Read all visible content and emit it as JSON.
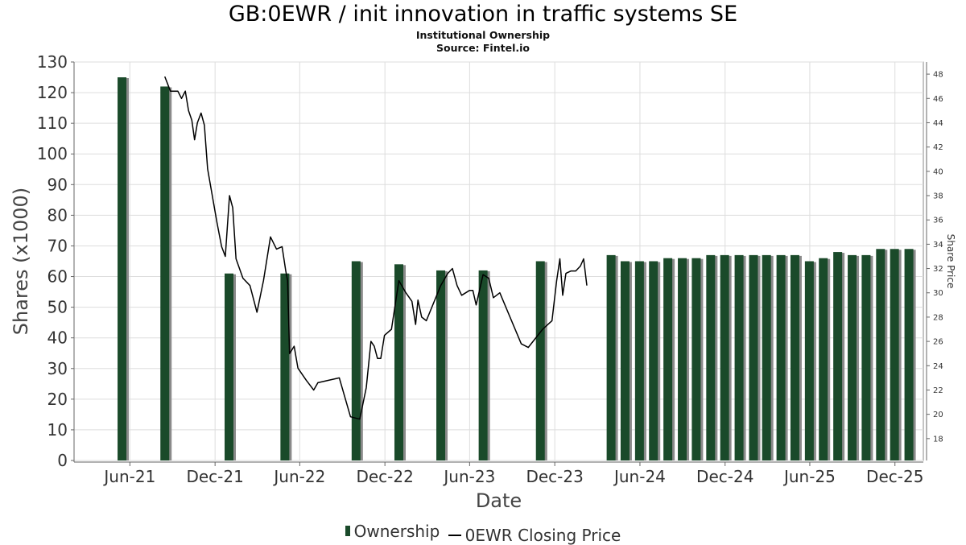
{
  "title": "GB:0EWR / init innovation in traffic systems SE",
  "subtitle": "Institutional Ownership",
  "source": "Source: Fintel.io",
  "legend": {
    "ownership": "Ownership",
    "price": "0EWR Closing Price"
  },
  "colors": {
    "bar": "#1a4a2a",
    "bar_shadow": "#8a8a8a",
    "line": "#000000",
    "grid": "#dddddd"
  },
  "chart_data": {
    "type": "bar",
    "xlabel": "Date",
    "ylabel": "Shares (x1000)",
    "y2label": "Share Price",
    "ylim": [
      0,
      130
    ],
    "y2lim": [
      16.2,
      49.0
    ],
    "yticks": [
      0,
      10,
      20,
      30,
      40,
      50,
      60,
      70,
      80,
      90,
      100,
      110,
      120,
      130
    ],
    "y2ticks": [
      18,
      20,
      22,
      24,
      26,
      28,
      30,
      32,
      34,
      36,
      38,
      40,
      42,
      44,
      46,
      48
    ],
    "xlim": [
      "2021-02-01",
      "2026-01-31"
    ],
    "xticks": [
      {
        "date": "2021-06-01",
        "label": "Jun-21"
      },
      {
        "date": "2021-12-01",
        "label": "Dec-21"
      },
      {
        "date": "2022-06-01",
        "label": "Jun-22"
      },
      {
        "date": "2022-12-01",
        "label": "Dec-22"
      },
      {
        "date": "2023-06-01",
        "label": "Jun-23"
      },
      {
        "date": "2023-12-01",
        "label": "Dec-23"
      },
      {
        "date": "2024-06-01",
        "label": "Jun-24"
      },
      {
        "date": "2024-12-01",
        "label": "Dec-24"
      },
      {
        "date": "2025-06-01",
        "label": "Jun-25"
      },
      {
        "date": "2025-12-01",
        "label": "Dec-25"
      }
    ],
    "grid": true,
    "series": [
      {
        "name": "Ownership",
        "type": "bar",
        "points": [
          {
            "date": "2021-05-15",
            "value": 125
          },
          {
            "date": "2021-08-15",
            "value": 122
          },
          {
            "date": "2021-12-31",
            "value": 61
          },
          {
            "date": "2022-04-30",
            "value": 61
          },
          {
            "date": "2022-09-30",
            "value": 65
          },
          {
            "date": "2022-12-31",
            "value": 64
          },
          {
            "date": "2023-03-31",
            "value": 62
          },
          {
            "date": "2023-06-30",
            "value": 62
          },
          {
            "date": "2023-10-31",
            "value": 65
          },
          {
            "date": "2024-03-31",
            "value": 67
          },
          {
            "date": "2024-04-30",
            "value": 65
          },
          {
            "date": "2024-05-31",
            "value": 65
          },
          {
            "date": "2024-06-30",
            "value": 65
          },
          {
            "date": "2024-07-31",
            "value": 66
          },
          {
            "date": "2024-08-31",
            "value": 66
          },
          {
            "date": "2024-09-30",
            "value": 66
          },
          {
            "date": "2024-10-31",
            "value": 67
          },
          {
            "date": "2024-11-30",
            "value": 67
          },
          {
            "date": "2024-12-31",
            "value": 67
          },
          {
            "date": "2025-01-31",
            "value": 67
          },
          {
            "date": "2025-02-28",
            "value": 67
          },
          {
            "date": "2025-03-31",
            "value": 67
          },
          {
            "date": "2025-04-30",
            "value": 67
          },
          {
            "date": "2025-05-31",
            "value": 65
          },
          {
            "date": "2025-06-30",
            "value": 66
          },
          {
            "date": "2025-07-31",
            "value": 68
          },
          {
            "date": "2025-08-31",
            "value": 67
          },
          {
            "date": "2025-09-30",
            "value": 67
          },
          {
            "date": "2025-10-31",
            "value": 69
          },
          {
            "date": "2025-11-30",
            "value": 69
          },
          {
            "date": "2025-12-31",
            "value": 69
          }
        ]
      },
      {
        "name": "0EWR Closing Price",
        "type": "line",
        "axis": "right",
        "points": [
          {
            "date": "2021-08-15",
            "value": 47.8
          },
          {
            "date": "2021-08-27",
            "value": 46.6
          },
          {
            "date": "2021-09-03",
            "value": 46.6
          },
          {
            "date": "2021-09-12",
            "value": 46.6
          },
          {
            "date": "2021-09-20",
            "value": 46.0
          },
          {
            "date": "2021-09-28",
            "value": 46.6
          },
          {
            "date": "2021-10-05",
            "value": 45.0
          },
          {
            "date": "2021-10-12",
            "value": 44.2
          },
          {
            "date": "2021-10-18",
            "value": 42.6
          },
          {
            "date": "2021-10-24",
            "value": 44.0
          },
          {
            "date": "2021-11-01",
            "value": 44.8
          },
          {
            "date": "2021-11-08",
            "value": 43.8
          },
          {
            "date": "2021-11-15",
            "value": 40.2
          },
          {
            "date": "2021-12-05",
            "value": 35.8
          },
          {
            "date": "2021-12-15",
            "value": 33.8
          },
          {
            "date": "2021-12-23",
            "value": 33.0
          },
          {
            "date": "2022-01-01",
            "value": 38.0
          },
          {
            "date": "2022-01-08",
            "value": 37.0
          },
          {
            "date": "2022-01-15",
            "value": 32.8
          },
          {
            "date": "2022-01-30",
            "value": 31.2
          },
          {
            "date": "2022-02-14",
            "value": 30.6
          },
          {
            "date": "2022-03-01",
            "value": 28.4
          },
          {
            "date": "2022-03-15",
            "value": 31.0
          },
          {
            "date": "2022-03-30",
            "value": 34.6
          },
          {
            "date": "2022-04-12",
            "value": 33.6
          },
          {
            "date": "2022-04-24",
            "value": 33.8
          },
          {
            "date": "2022-05-02",
            "value": 31.8
          },
          {
            "date": "2022-05-06",
            "value": 31.0
          },
          {
            "date": "2022-05-10",
            "value": 25.0
          },
          {
            "date": "2022-05-20",
            "value": 25.6
          },
          {
            "date": "2022-05-28",
            "value": 23.8
          },
          {
            "date": "2022-06-15",
            "value": 22.8
          },
          {
            "date": "2022-07-01",
            "value": 22.0
          },
          {
            "date": "2022-07-10",
            "value": 22.6
          },
          {
            "date": "2022-08-25",
            "value": 23.0
          },
          {
            "date": "2022-09-18",
            "value": 19.8
          },
          {
            "date": "2022-10-08",
            "value": 19.6
          },
          {
            "date": "2022-10-22",
            "value": 22.2
          },
          {
            "date": "2022-11-01",
            "value": 26.0
          },
          {
            "date": "2022-11-08",
            "value": 25.6
          },
          {
            "date": "2022-11-15",
            "value": 24.6
          },
          {
            "date": "2022-11-22",
            "value": 24.6
          },
          {
            "date": "2022-11-30",
            "value": 26.5
          },
          {
            "date": "2022-12-15",
            "value": 27.0
          },
          {
            "date": "2022-12-31",
            "value": 31.0
          },
          {
            "date": "2023-01-15",
            "value": 30.0
          },
          {
            "date": "2023-01-28",
            "value": 29.3
          },
          {
            "date": "2023-02-05",
            "value": 27.4
          },
          {
            "date": "2023-02-10",
            "value": 29.4
          },
          {
            "date": "2023-02-18",
            "value": 28.0
          },
          {
            "date": "2023-02-28",
            "value": 27.7
          },
          {
            "date": "2023-03-31",
            "value": 30.6
          },
          {
            "date": "2023-04-15",
            "value": 31.6
          },
          {
            "date": "2023-04-25",
            "value": 32.0
          },
          {
            "date": "2023-05-05",
            "value": 30.6
          },
          {
            "date": "2023-05-15",
            "value": 29.8
          },
          {
            "date": "2023-06-01",
            "value": 30.2
          },
          {
            "date": "2023-06-08",
            "value": 30.2
          },
          {
            "date": "2023-06-15",
            "value": 29.0
          },
          {
            "date": "2023-06-30",
            "value": 31.5
          },
          {
            "date": "2023-07-12",
            "value": 31.2
          },
          {
            "date": "2023-07-22",
            "value": 29.6
          },
          {
            "date": "2023-08-05",
            "value": 30.0
          },
          {
            "date": "2023-09-20",
            "value": 25.8
          },
          {
            "date": "2023-10-05",
            "value": 25.5
          },
          {
            "date": "2023-11-05",
            "value": 27.0
          },
          {
            "date": "2023-11-25",
            "value": 27.7
          },
          {
            "date": "2023-12-05",
            "value": 31.0
          },
          {
            "date": "2023-12-12",
            "value": 32.8
          },
          {
            "date": "2023-12-18",
            "value": 29.8
          },
          {
            "date": "2023-12-25",
            "value": 31.6
          },
          {
            "date": "2024-01-05",
            "value": 31.8
          },
          {
            "date": "2024-01-15",
            "value": 31.8
          },
          {
            "date": "2024-01-25",
            "value": 32.2
          },
          {
            "date": "2024-02-01",
            "value": 32.8
          },
          {
            "date": "2024-02-08",
            "value": 30.6
          }
        ]
      }
    ]
  }
}
